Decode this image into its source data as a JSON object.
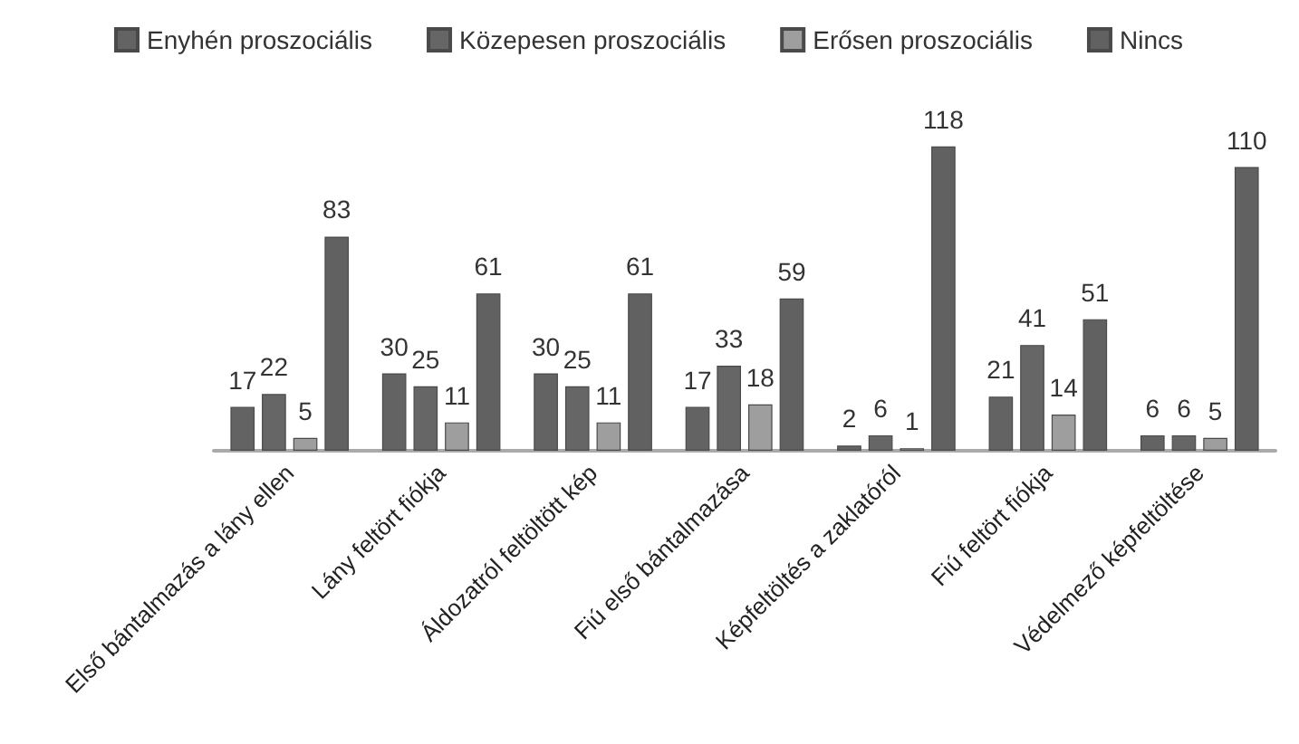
{
  "chart_data": {
    "type": "bar",
    "categories": [
      "Első bántalmazás a lány ellen",
      "Lány feltört fiókja",
      "Áldozatról feltöltött kép",
      "Fiú első bántalmazása",
      "Képfeltöltés a zaklatóról",
      "Fiú feltört fiókja",
      "Védelmező képfeltöltése"
    ],
    "series": [
      {
        "name": "Enyhén proszociális",
        "color": "#636363",
        "values": [
          17,
          30,
          30,
          17,
          2,
          21,
          6
        ]
      },
      {
        "name": "Közepesen proszociális",
        "color": "#666666",
        "values": [
          22,
          25,
          25,
          33,
          6,
          41,
          6
        ]
      },
      {
        "name": "Erősen proszociális",
        "color": "#9e9e9e",
        "values": [
          5,
          11,
          11,
          18,
          1,
          14,
          5
        ]
      },
      {
        "name": "Nincs",
        "color": "#616161",
        "values": [
          83,
          61,
          61,
          59,
          118,
          51,
          110
        ]
      }
    ],
    "data_labels": true,
    "legend": "top",
    "grid": false
  }
}
